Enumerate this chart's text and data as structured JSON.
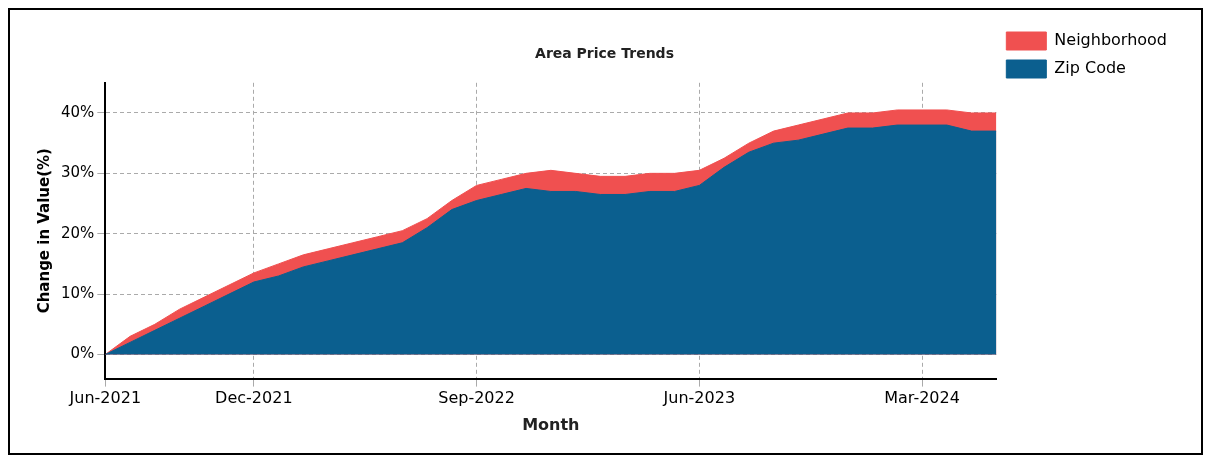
{
  "chart_data": {
    "type": "area",
    "title": "Area Price Trends",
    "xlabel": "Month",
    "ylabel": "Change in Value(%)",
    "x": [
      "2021-06",
      "2021-07",
      "2021-08",
      "2021-09",
      "2021-10",
      "2021-11",
      "2021-12",
      "2022-01",
      "2022-02",
      "2022-03",
      "2022-04",
      "2022-05",
      "2022-06",
      "2022-07",
      "2022-08",
      "2022-09",
      "2022-10",
      "2022-11",
      "2022-12",
      "2023-01",
      "2023-02",
      "2023-03",
      "2023-04",
      "2023-05",
      "2023-06",
      "2023-07",
      "2023-08",
      "2023-09",
      "2023-10",
      "2023-11",
      "2023-12",
      "2024-01",
      "2024-02",
      "2024-03",
      "2024-04",
      "2024-05",
      "2024-06"
    ],
    "series": [
      {
        "name": "Neighborhood",
        "color": "#f05050",
        "values": [
          0,
          3,
          5,
          7.5,
          9.5,
          11.5,
          13.5,
          15,
          16.5,
          17.5,
          18.5,
          19.5,
          20.5,
          22.5,
          25.5,
          28,
          29,
          30,
          30.5,
          30,
          29.5,
          29.5,
          30,
          30,
          30.5,
          32.5,
          35,
          37,
          38,
          39,
          40,
          40,
          40.5,
          40.5,
          40.5,
          40,
          40
        ]
      },
      {
        "name": "Zip Code",
        "color": "#0b5f8f",
        "values": [
          0,
          2,
          4,
          6,
          8,
          10,
          12,
          13,
          14.5,
          15.5,
          16.5,
          17.5,
          18.5,
          21,
          24,
          25.5,
          26.5,
          27.5,
          27,
          27,
          26.5,
          26.5,
          27,
          27,
          28,
          31,
          33.5,
          35,
          35.5,
          36.5,
          37.5,
          37.5,
          38,
          38,
          38,
          37,
          37
        ]
      }
    ],
    "xlim": [
      "2021-06",
      "2024-06"
    ],
    "xticks": [
      {
        "value": "2021-06",
        "label": "Jun-2021"
      },
      {
        "value": "2021-12",
        "label": "Dec-2021"
      },
      {
        "value": "2022-09",
        "label": "Sep-2022"
      },
      {
        "value": "2023-06",
        "label": "Jun-2023"
      },
      {
        "value": "2024-03",
        "label": "Mar-2024"
      }
    ],
    "ylim": [
      -4,
      45
    ],
    "yticks": [
      {
        "value": 0,
        "label": "0%"
      },
      {
        "value": 10,
        "label": "10%"
      },
      {
        "value": 20,
        "label": "20%"
      },
      {
        "value": 30,
        "label": "30%"
      },
      {
        "value": 40,
        "label": "40%"
      }
    ],
    "grid": true,
    "legend": "top right"
  }
}
